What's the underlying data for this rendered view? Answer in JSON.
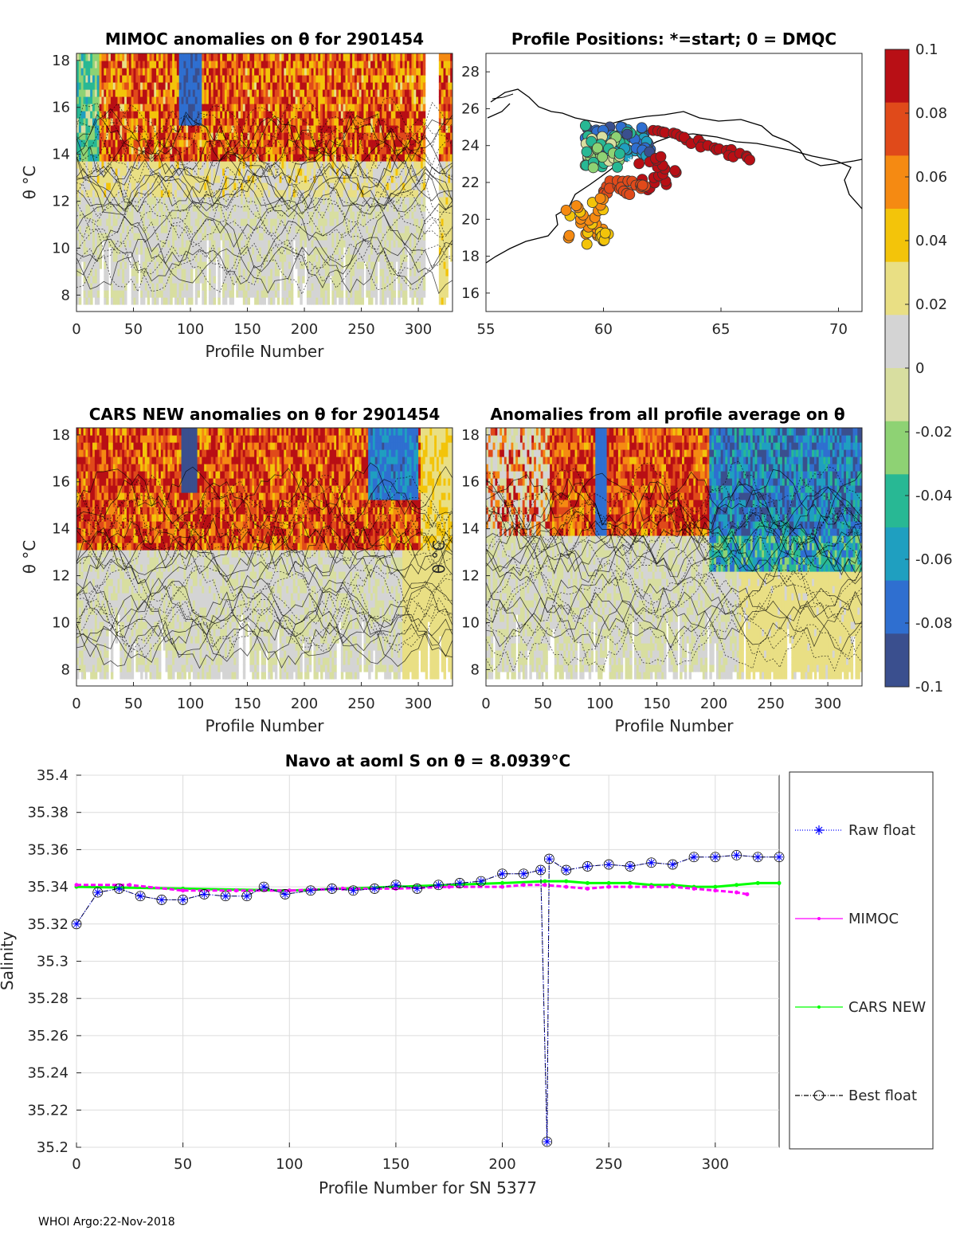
{
  "colorbar": {
    "ticks": [
      "0.1",
      "0.08",
      "0.06",
      "0.04",
      "0.02",
      "0",
      "-0.02",
      "-0.04",
      "-0.06",
      "-0.08",
      "-0.1"
    ],
    "colors": [
      "#3a4f8e",
      "#2f6fd0",
      "#1f9fc0",
      "#28b894",
      "#8ed274",
      "#d8dea0",
      "#d4d4d4",
      "#e9df84",
      "#f3c40a",
      "#f58a12",
      "#e04a1a",
      "#b80f15"
    ]
  },
  "panels": {
    "mimoc": {
      "title": "MIMOC anomalies on θ  for 2901454",
      "ylabel": "θ °C",
      "xlabel": "Profile Number",
      "xticks": [
        "0",
        "50",
        "100",
        "150",
        "200",
        "250",
        "300"
      ],
      "yticks": [
        "8",
        "10",
        "12",
        "14",
        "16",
        "18"
      ]
    },
    "map": {
      "title": "Profile Positions: *=start; 0 = DMQC",
      "xticks": [
        "55",
        "60",
        "65",
        "70"
      ],
      "yticks": [
        "16",
        "18",
        "20",
        "22",
        "24",
        "26",
        "28"
      ]
    },
    "cars": {
      "title": "CARS NEW anomalies on θ for 2901454",
      "ylabel": "θ °C",
      "xlabel": "Profile Number",
      "xticks": [
        "0",
        "50",
        "100",
        "150",
        "200",
        "250",
        "300"
      ],
      "yticks": [
        "8",
        "10",
        "12",
        "14",
        "16",
        "18"
      ]
    },
    "avg": {
      "title": "Anomalies from all profile average on θ",
      "ylabel": "θ °C",
      "xlabel": "Profile Number",
      "xticks": [
        "0",
        "50",
        "100",
        "150",
        "200",
        "250",
        "300"
      ],
      "yticks": [
        "8",
        "10",
        "12",
        "14",
        "16",
        "18"
      ]
    }
  },
  "chart_data": {
    "type": "line",
    "title": "Navo at aoml S on θ = 8.0939°C",
    "xlabel": "Profile Number for SN 5377",
    "ylabel": "Salinity",
    "xlim": [
      0,
      330
    ],
    "ylim": [
      35.2,
      35.4
    ],
    "xticks": [
      "0",
      "50",
      "100",
      "150",
      "200",
      "250",
      "300"
    ],
    "yticks": [
      "35.4",
      "35.38",
      "35.36",
      "35.34",
      "35.32",
      "35.3",
      "35.28",
      "35.26",
      "35.24",
      "35.22",
      "35.2"
    ],
    "legend": [
      "Raw float",
      "MIMOC",
      "CARS NEW",
      "Best float"
    ],
    "legend_position": "outside-right",
    "series": [
      {
        "name": "Raw float",
        "color": "#0000ff",
        "x": [
          0,
          10,
          20,
          30,
          40,
          50,
          60,
          70,
          80,
          88,
          98,
          110,
          120,
          130,
          140,
          150,
          160,
          170,
          180,
          190,
          200,
          210,
          218,
          221,
          222,
          230,
          240,
          250,
          260,
          270,
          280,
          290,
          300,
          310,
          320,
          330
        ],
        "y": [
          35.32,
          35.337,
          35.339,
          35.335,
          35.333,
          35.333,
          35.336,
          35.335,
          35.335,
          35.34,
          35.336,
          35.338,
          35.339,
          35.338,
          35.339,
          35.341,
          35.339,
          35.341,
          35.342,
          35.343,
          35.347,
          35.347,
          35.349,
          35.203,
          35.355,
          35.349,
          35.351,
          35.352,
          35.351,
          35.353,
          35.352,
          35.356,
          35.356,
          35.357,
          35.356,
          35.356
        ]
      },
      {
        "name": "MIMOC",
        "color": "#ff00ff",
        "x": [
          0,
          25,
          50,
          75,
          100,
          125,
          150,
          175,
          200,
          210,
          220,
          230,
          240,
          250,
          260,
          270,
          280,
          290,
          300,
          310,
          315
        ],
        "y": [
          35.341,
          35.341,
          35.338,
          35.338,
          35.338,
          35.339,
          35.339,
          35.34,
          35.34,
          35.341,
          35.341,
          35.34,
          35.339,
          35.34,
          35.34,
          35.34,
          35.34,
          35.339,
          35.338,
          35.337,
          35.336
        ]
      },
      {
        "name": "CARS NEW",
        "color": "#00ff00",
        "x": [
          0,
          50,
          100,
          150,
          200,
          220,
          230,
          240,
          250,
          260,
          270,
          280,
          290,
          300,
          310,
          320,
          330
        ],
        "y": [
          35.34,
          35.339,
          35.338,
          35.34,
          35.342,
          35.343,
          35.343,
          35.342,
          35.342,
          35.342,
          35.341,
          35.341,
          35.34,
          35.34,
          35.341,
          35.342,
          35.342
        ]
      },
      {
        "name": "Best float",
        "color": "#000000",
        "x": [
          0,
          10,
          20,
          30,
          40,
          50,
          60,
          70,
          80,
          88,
          98,
          110,
          120,
          130,
          140,
          150,
          160,
          170,
          180,
          190,
          200,
          210,
          218,
          221,
          222,
          230,
          240,
          250,
          260,
          270,
          280,
          290,
          300,
          310,
          320,
          330
        ],
        "y": [
          35.32,
          35.337,
          35.339,
          35.335,
          35.333,
          35.333,
          35.336,
          35.335,
          35.335,
          35.34,
          35.336,
          35.338,
          35.339,
          35.338,
          35.339,
          35.341,
          35.339,
          35.341,
          35.342,
          35.343,
          35.347,
          35.347,
          35.349,
          35.203,
          35.355,
          35.349,
          35.351,
          35.352,
          35.351,
          35.353,
          35.352,
          35.356,
          35.356,
          35.357,
          35.356,
          35.356
        ]
      }
    ]
  },
  "footer": "WHOI Argo:22-Nov-2018"
}
